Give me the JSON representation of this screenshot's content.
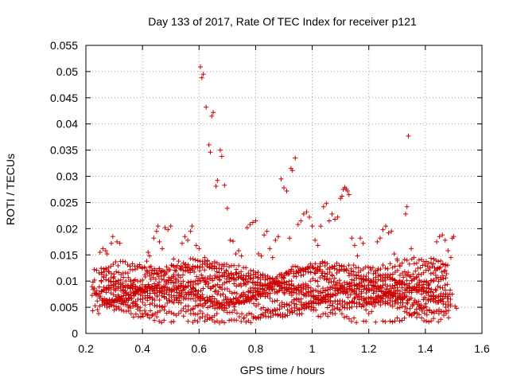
{
  "chart_data": {
    "type": "scatter",
    "title": "Day 133 of 2017, Rate Of TEC Index for receiver p121",
    "xlabel": "GPS time / hours",
    "ylabel": "ROTI / TECUs",
    "xlim": [
      0.2,
      1.6
    ],
    "ylim": [
      0,
      0.055
    ],
    "x_ticks": [
      "0.2",
      "0.4",
      "0.6",
      "0.8",
      "1",
      "1.2",
      "1.4",
      "1.6"
    ],
    "y_ticks": [
      "0",
      "0.005",
      "0.01",
      "0.015",
      "0.02",
      "0.025",
      "0.03",
      "0.035",
      "0.04",
      "0.045",
      "0.05",
      "0.055"
    ],
    "grid": true,
    "marker": "plus",
    "color": "#cc0000",
    "series": [
      {
        "values": [
          [
            0.225,
            0.0098
          ],
          [
            0.23,
            0.0102
          ],
          [
            0.235,
            0.0075
          ],
          [
            0.24,
            0.0062
          ],
          [
            0.245,
            0.0038
          ],
          [
            0.25,
            0.0155
          ],
          [
            0.255,
            0.0099
          ],
          [
            0.26,
            0.0162
          ],
          [
            0.265,
            0.0058
          ],
          [
            0.27,
            0.0158
          ],
          [
            0.275,
            0.0152
          ],
          [
            0.28,
            0.0118
          ],
          [
            0.285,
            0.0055
          ],
          [
            0.29,
            0.0172
          ],
          [
            0.295,
            0.0185
          ],
          [
            0.3,
            0.0108
          ],
          [
            0.305,
            0.0082
          ],
          [
            0.31,
            0.0175
          ],
          [
            0.315,
            0.0065
          ],
          [
            0.32,
            0.0172
          ],
          [
            0.33,
            0.0096
          ],
          [
            0.34,
            0.0078
          ],
          [
            0.35,
            0.0063
          ],
          [
            0.36,
            0.0092
          ],
          [
            0.37,
            0.0101
          ],
          [
            0.38,
            0.0055
          ],
          [
            0.39,
            0.0088
          ],
          [
            0.4,
            0.0072
          ],
          [
            0.41,
            0.0108
          ],
          [
            0.415,
            0.0138
          ],
          [
            0.42,
            0.0155
          ],
          [
            0.425,
            0.0148
          ],
          [
            0.43,
            0.0128
          ],
          [
            0.44,
            0.0182
          ],
          [
            0.45,
            0.0195
          ],
          [
            0.455,
            0.0205
          ],
          [
            0.46,
            0.0175
          ],
          [
            0.47,
            0.0162
          ],
          [
            0.48,
            0.0202
          ],
          [
            0.49,
            0.0198
          ],
          [
            0.5,
            0.0205
          ],
          [
            0.51,
            0.0142
          ],
          [
            0.52,
            0.0085
          ],
          [
            0.53,
            0.0068
          ],
          [
            0.54,
            0.0172
          ],
          [
            0.55,
            0.0185
          ],
          [
            0.56,
            0.0178
          ],
          [
            0.57,
            0.0195
          ],
          [
            0.575,
            0.0205
          ],
          [
            0.58,
            0.0038
          ],
          [
            0.585,
            0.0025
          ],
          [
            0.59,
            0.0168
          ],
          [
            0.6,
            0.0162
          ],
          [
            0.605,
            0.0509
          ],
          [
            0.61,
            0.0488
          ],
          [
            0.615,
            0.0495
          ],
          [
            0.62,
            0.0145
          ],
          [
            0.625,
            0.0432
          ],
          [
            0.63,
            0.0138
          ],
          [
            0.635,
            0.036
          ],
          [
            0.64,
            0.0346
          ],
          [
            0.645,
            0.0415
          ],
          [
            0.65,
            0.0422
          ],
          [
            0.655,
            0.0128
          ],
          [
            0.66,
            0.0281
          ],
          [
            0.665,
            0.0292
          ],
          [
            0.67,
            0.0108
          ],
          [
            0.675,
            0.035
          ],
          [
            0.68,
            0.0338
          ],
          [
            0.69,
            0.0283
          ],
          [
            0.7,
            0.0239
          ],
          [
            0.71,
            0.0178
          ],
          [
            0.72,
            0.0176
          ],
          [
            0.73,
            0.0152
          ],
          [
            0.74,
            0.0158
          ],
          [
            0.75,
            0.0148
          ],
          [
            0.76,
            0.0095
          ],
          [
            0.77,
            0.0202
          ],
          [
            0.78,
            0.0208
          ],
          [
            0.79,
            0.0212
          ],
          [
            0.8,
            0.0215
          ],
          [
            0.81,
            0.0152
          ],
          [
            0.82,
            0.0148
          ],
          [
            0.83,
            0.0188
          ],
          [
            0.84,
            0.0195
          ],
          [
            0.85,
            0.0162
          ],
          [
            0.86,
            0.0145
          ],
          [
            0.87,
            0.0178
          ],
          [
            0.88,
            0.0185
          ],
          [
            0.89,
            0.0295
          ],
          [
            0.9,
            0.0278
          ],
          [
            0.91,
            0.0272
          ],
          [
            0.92,
            0.0182
          ],
          [
            0.925,
            0.0315
          ],
          [
            0.93,
            0.0311
          ],
          [
            0.94,
            0.0335
          ],
          [
            0.95,
            0.0208
          ],
          [
            0.96,
            0.0215
          ],
          [
            0.97,
            0.0228
          ],
          [
            0.98,
            0.0232
          ],
          [
            0.99,
            0.0222
          ],
          [
            1.0,
            0.0205
          ],
          [
            1.01,
            0.0178
          ],
          [
            1.02,
            0.0168
          ],
          [
            1.03,
            0.0205
          ],
          [
            1.04,
            0.0242
          ],
          [
            1.05,
            0.0248
          ],
          [
            1.06,
            0.0215
          ],
          [
            1.07,
            0.0228
          ],
          [
            1.08,
            0.0218
          ],
          [
            1.09,
            0.0222
          ],
          [
            1.1,
            0.0258
          ],
          [
            1.105,
            0.0262
          ],
          [
            1.11,
            0.0275
          ],
          [
            1.115,
            0.0279
          ],
          [
            1.12,
            0.0276
          ],
          [
            1.125,
            0.0272
          ],
          [
            1.13,
            0.0265
          ],
          [
            1.14,
            0.0182
          ],
          [
            1.15,
            0.0168
          ],
          [
            1.16,
            0.0148
          ],
          [
            1.17,
            0.0182
          ],
          [
            1.18,
            0.0172
          ],
          [
            1.19,
            0.0045
          ],
          [
            1.2,
            0.0038
          ],
          [
            1.21,
            0.0042
          ],
          [
            1.22,
            0.0052
          ],
          [
            1.23,
            0.0175
          ],
          [
            1.24,
            0.0182
          ],
          [
            1.25,
            0.0198
          ],
          [
            1.26,
            0.0205
          ],
          [
            1.27,
            0.0192
          ],
          [
            1.28,
            0.0195
          ],
          [
            1.29,
            0.0152
          ],
          [
            1.3,
            0.0142
          ],
          [
            1.31,
            0.0128
          ],
          [
            1.32,
            0.0098
          ],
          [
            1.33,
            0.0228
          ],
          [
            1.335,
            0.0242
          ],
          [
            1.34,
            0.0377
          ],
          [
            1.35,
            0.0162
          ],
          [
            1.36,
            0.0145
          ],
          [
            1.37,
            0.0108
          ],
          [
            1.38,
            0.0098
          ],
          [
            1.39,
            0.0088
          ],
          [
            1.4,
            0.0068
          ],
          [
            1.41,
            0.0092
          ],
          [
            1.42,
            0.0135
          ],
          [
            1.43,
            0.0142
          ],
          [
            1.44,
            0.0175
          ],
          [
            1.45,
            0.0185
          ],
          [
            1.46,
            0.0188
          ],
          [
            1.47,
            0.0178
          ],
          [
            1.48,
            0.0158
          ],
          [
            1.49,
            0.0145
          ],
          [
            1.495,
            0.0182
          ],
          [
            1.5,
            0.0185
          ],
          [
            1.505,
            0.0052
          ],
          [
            1.51,
            0.0048
          ]
        ]
      }
    ]
  }
}
